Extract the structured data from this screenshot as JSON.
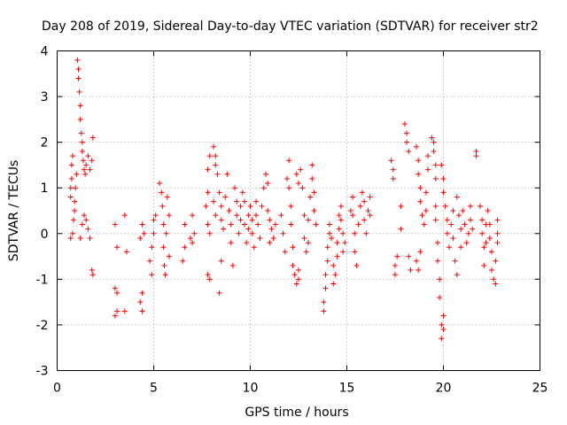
{
  "chart_data": {
    "type": "scatter",
    "title": "Day 208 of 2019, Sidereal Day-to-day VTEC variation (SDTVAR) for receiver str2",
    "xlabel": "GPS time / hours",
    "ylabel": "SDTVAR / TECUs",
    "xlim": [
      0,
      25
    ],
    "ylim": [
      -3,
      4
    ],
    "xticks": [
      "0",
      "5",
      "10",
      "15",
      "20",
      "25"
    ],
    "yticks": [
      "-3",
      "-2",
      "-1",
      "0",
      "1",
      "2",
      "3",
      "4"
    ],
    "grid": true,
    "marker": "+",
    "color": "#ff0000",
    "series": [
      {
        "name": "SDTVAR",
        "points": [
          [
            0.7,
            0.8
          ],
          [
            0.7,
            1.0
          ],
          [
            0.75,
            1.2
          ],
          [
            0.75,
            1.5
          ],
          [
            0.8,
            1.7
          ],
          [
            0.8,
            0.0
          ],
          [
            0.7,
            -0.1
          ],
          [
            0.85,
            0.3
          ],
          [
            0.9,
            0.5
          ],
          [
            0.9,
            0.7
          ],
          [
            0.95,
            1.0
          ],
          [
            1.0,
            1.3
          ],
          [
            1.05,
            3.8
          ],
          [
            1.1,
            3.6
          ],
          [
            1.1,
            3.4
          ],
          [
            1.15,
            3.1
          ],
          [
            1.2,
            2.8
          ],
          [
            1.2,
            2.5
          ],
          [
            1.25,
            2.2
          ],
          [
            1.3,
            2.0
          ],
          [
            1.3,
            1.8
          ],
          [
            1.35,
            1.6
          ],
          [
            1.4,
            1.4
          ],
          [
            1.45,
            1.3
          ],
          [
            1.5,
            1.5
          ],
          [
            1.6,
            1.7
          ],
          [
            1.7,
            1.4
          ],
          [
            1.8,
            1.6
          ],
          [
            1.85,
            2.1
          ],
          [
            1.2,
            -0.1
          ],
          [
            1.3,
            0.2
          ],
          [
            1.4,
            0.4
          ],
          [
            1.5,
            0.3
          ],
          [
            1.6,
            0.1
          ],
          [
            1.7,
            -0.1
          ],
          [
            1.8,
            -0.8
          ],
          [
            1.85,
            -0.9
          ],
          [
            3.0,
            -1.2
          ],
          [
            3.1,
            -1.3
          ],
          [
            3.0,
            -1.8
          ],
          [
            3.1,
            -1.7
          ],
          [
            3.0,
            0.2
          ],
          [
            3.1,
            -0.3
          ],
          [
            3.5,
            -1.7
          ],
          [
            3.5,
            0.4
          ],
          [
            3.6,
            -0.4
          ],
          [
            4.3,
            -1.5
          ],
          [
            4.4,
            -1.7
          ],
          [
            4.4,
            -1.3
          ],
          [
            4.3,
            -0.1
          ],
          [
            4.4,
            0.2
          ],
          [
            4.5,
            0.0
          ],
          [
            4.8,
            -0.6
          ],
          [
            4.9,
            -0.9
          ],
          [
            4.9,
            -0.3
          ],
          [
            5.0,
            0.0
          ],
          [
            5.0,
            0.3
          ],
          [
            5.1,
            0.4
          ],
          [
            5.3,
            1.1
          ],
          [
            5.4,
            0.9
          ],
          [
            5.45,
            0.6
          ],
          [
            5.5,
            0.2
          ],
          [
            5.5,
            -0.3
          ],
          [
            5.55,
            -0.7
          ],
          [
            5.6,
            -0.9
          ],
          [
            5.65,
            0.0
          ],
          [
            5.7,
            0.8
          ],
          [
            5.8,
            0.4
          ],
          [
            5.8,
            -0.5
          ],
          [
            6.5,
            -0.6
          ],
          [
            6.6,
            0.2
          ],
          [
            6.6,
            -0.3
          ],
          [
            6.9,
            -0.1
          ],
          [
            7.0,
            0.4
          ],
          [
            7.0,
            -0.2
          ],
          [
            7.1,
            0.0
          ],
          [
            7.7,
            0.6
          ],
          [
            7.8,
            0.9
          ],
          [
            7.8,
            0.2
          ],
          [
            7.9,
            0.0
          ],
          [
            7.8,
            -0.9
          ],
          [
            7.9,
            -1.0
          ],
          [
            7.8,
            1.4
          ],
          [
            7.9,
            1.7
          ],
          [
            8.1,
            1.9
          ],
          [
            8.2,
            1.7
          ],
          [
            8.2,
            1.5
          ],
          [
            8.3,
            1.3
          ],
          [
            8.1,
            0.7
          ],
          [
            8.2,
            0.4
          ],
          [
            8.4,
            0.9
          ],
          [
            8.5,
            0.6
          ],
          [
            8.5,
            0.3
          ],
          [
            8.4,
            -1.3
          ],
          [
            8.5,
            -0.6
          ],
          [
            8.6,
            0.1
          ],
          [
            8.7,
            0.8
          ],
          [
            8.8,
            1.3
          ],
          [
            8.9,
            0.5
          ],
          [
            9.0,
            0.2
          ],
          [
            9.0,
            -0.2
          ],
          [
            9.1,
            -0.7
          ],
          [
            9.2,
            1.0
          ],
          [
            9.3,
            0.7
          ],
          [
            9.3,
            0.4
          ],
          [
            9.4,
            0.0
          ],
          [
            9.5,
            0.3
          ],
          [
            9.5,
            0.6
          ],
          [
            9.6,
            0.9
          ],
          [
            9.7,
            0.7
          ],
          [
            9.7,
            0.2
          ],
          [
            9.8,
            -0.2
          ],
          [
            9.9,
            0.1
          ],
          [
            9.9,
            0.4
          ],
          [
            10.0,
            0.6
          ],
          [
            10.1,
            0.3
          ],
          [
            10.1,
            0.0
          ],
          [
            10.2,
            -0.3
          ],
          [
            10.3,
            0.4
          ],
          [
            10.3,
            0.7
          ],
          [
            10.4,
            0.2
          ],
          [
            10.5,
            -0.1
          ],
          [
            10.6,
            0.6
          ],
          [
            10.7,
            1.0
          ],
          [
            10.8,
            1.3
          ],
          [
            10.9,
            1.1
          ],
          [
            10.9,
            0.5
          ],
          [
            11.0,
            0.3
          ],
          [
            11.0,
            -0.2
          ],
          [
            11.1,
            0.1
          ],
          [
            11.2,
            -0.1
          ],
          [
            11.3,
            0.2
          ],
          [
            11.6,
            0.4
          ],
          [
            11.7,
            0.0
          ],
          [
            11.8,
            -0.4
          ],
          [
            11.9,
            1.2
          ],
          [
            12.0,
            1.6
          ],
          [
            12.0,
            1.0
          ],
          [
            12.1,
            0.6
          ],
          [
            12.1,
            0.2
          ],
          [
            12.2,
            -0.3
          ],
          [
            12.2,
            -0.7
          ],
          [
            12.3,
            -0.9
          ],
          [
            12.4,
            -1.1
          ],
          [
            12.5,
            -1.0
          ],
          [
            12.5,
            -0.8
          ],
          [
            12.4,
            1.3
          ],
          [
            12.5,
            1.1
          ],
          [
            12.6,
            1.4
          ],
          [
            12.7,
            1.0
          ],
          [
            12.8,
            0.4
          ],
          [
            12.8,
            -0.1
          ],
          [
            12.9,
            -0.4
          ],
          [
            13.0,
            -0.2
          ],
          [
            13.0,
            0.3
          ],
          [
            13.1,
            0.8
          ],
          [
            13.2,
            1.2
          ],
          [
            13.2,
            1.5
          ],
          [
            13.3,
            0.9
          ],
          [
            13.3,
            0.5
          ],
          [
            13.4,
            0.2
          ],
          [
            13.8,
            -1.7
          ],
          [
            13.8,
            -1.5
          ],
          [
            13.9,
            -1.2
          ],
          [
            13.9,
            -0.9
          ],
          [
            14.0,
            -0.6
          ],
          [
            14.0,
            -0.3
          ],
          [
            14.1,
            0.0
          ],
          [
            14.1,
            0.2
          ],
          [
            14.2,
            -0.1
          ],
          [
            14.3,
            -0.7
          ],
          [
            14.3,
            -1.1
          ],
          [
            14.4,
            -0.9
          ],
          [
            14.5,
            -0.5
          ],
          [
            14.5,
            -0.2
          ],
          [
            14.6,
            0.1
          ],
          [
            14.6,
            0.4
          ],
          [
            14.7,
            0.6
          ],
          [
            14.7,
            0.3
          ],
          [
            14.8,
            0.0
          ],
          [
            14.8,
            -0.4
          ],
          [
            14.9,
            -0.2
          ],
          [
            15.2,
            0.5
          ],
          [
            15.3,
            0.8
          ],
          [
            15.3,
            0.4
          ],
          [
            15.4,
            0.0
          ],
          [
            15.4,
            -0.4
          ],
          [
            15.5,
            -0.7
          ],
          [
            15.6,
            0.2
          ],
          [
            15.7,
            0.6
          ],
          [
            15.8,
            0.9
          ],
          [
            15.9,
            0.7
          ],
          [
            15.9,
            0.3
          ],
          [
            16.0,
            0.0
          ],
          [
            16.1,
            0.5
          ],
          [
            16.2,
            0.8
          ],
          [
            16.2,
            0.4
          ],
          [
            17.3,
            1.6
          ],
          [
            17.4,
            1.4
          ],
          [
            17.4,
            1.2
          ],
          [
            17.5,
            -0.7
          ],
          [
            17.5,
            -0.9
          ],
          [
            17.6,
            -0.5
          ],
          [
            17.8,
            0.1
          ],
          [
            17.8,
            0.6
          ],
          [
            18.0,
            2.4
          ],
          [
            18.1,
            2.2
          ],
          [
            18.1,
            2.0
          ],
          [
            18.2,
            1.8
          ],
          [
            18.2,
            -0.5
          ],
          [
            18.3,
            -0.8
          ],
          [
            18.6,
            -0.6
          ],
          [
            18.7,
            -0.8
          ],
          [
            18.8,
            -0.4
          ],
          [
            18.6,
            1.9
          ],
          [
            18.7,
            1.6
          ],
          [
            18.7,
            1.3
          ],
          [
            18.8,
            1.0
          ],
          [
            18.8,
            0.7
          ],
          [
            18.9,
            0.4
          ],
          [
            19.0,
            0.2
          ],
          [
            19.1,
            0.5
          ],
          [
            19.1,
            0.9
          ],
          [
            19.2,
            1.4
          ],
          [
            19.2,
            1.7
          ],
          [
            19.4,
            2.1
          ],
          [
            19.5,
            2.0
          ],
          [
            19.5,
            1.8
          ],
          [
            19.6,
            1.5
          ],
          [
            19.6,
            1.2
          ],
          [
            19.6,
            0.6
          ],
          [
            19.6,
            0.3
          ],
          [
            19.7,
            -0.2
          ],
          [
            19.7,
            -0.6
          ],
          [
            19.8,
            -1.0
          ],
          [
            19.8,
            -1.4
          ],
          [
            19.9,
            -2.0
          ],
          [
            19.9,
            -2.3
          ],
          [
            20.0,
            -2.1
          ],
          [
            20.0,
            -1.8
          ],
          [
            19.9,
            1.5
          ],
          [
            20.0,
            1.2
          ],
          [
            20.0,
            0.9
          ],
          [
            20.1,
            0.6
          ],
          [
            20.2,
            0.3
          ],
          [
            20.2,
            0.0
          ],
          [
            20.3,
            -0.3
          ],
          [
            20.4,
            0.2
          ],
          [
            20.5,
            0.5
          ],
          [
            20.5,
            -0.1
          ],
          [
            20.6,
            -0.6
          ],
          [
            20.7,
            -0.9
          ],
          [
            20.7,
            0.8
          ],
          [
            20.8,
            0.4
          ],
          [
            20.9,
            0.1
          ],
          [
            20.9,
            -0.3
          ],
          [
            21.0,
            0.5
          ],
          [
            21.1,
            0.2
          ],
          [
            21.2,
            -0.2
          ],
          [
            21.3,
            0.0
          ],
          [
            21.4,
            0.3
          ],
          [
            21.4,
            0.6
          ],
          [
            21.5,
            0.1
          ],
          [
            21.7,
            1.8
          ],
          [
            21.7,
            1.7
          ],
          [
            21.9,
            0.6
          ],
          [
            22.0,
            0.3
          ],
          [
            22.0,
            0.0
          ],
          [
            22.1,
            -0.3
          ],
          [
            22.1,
            -0.7
          ],
          [
            22.2,
            -0.2
          ],
          [
            22.2,
            0.2
          ],
          [
            22.3,
            0.5
          ],
          [
            22.4,
            0.2
          ],
          [
            22.4,
            -0.1
          ],
          [
            22.5,
            -0.4
          ],
          [
            22.5,
            -0.8
          ],
          [
            22.6,
            -1.0
          ],
          [
            22.7,
            -1.1
          ],
          [
            22.7,
            -0.6
          ],
          [
            22.8,
            -0.2
          ],
          [
            22.8,
            0.3
          ],
          [
            22.8,
            0.0
          ]
        ]
      }
    ]
  }
}
